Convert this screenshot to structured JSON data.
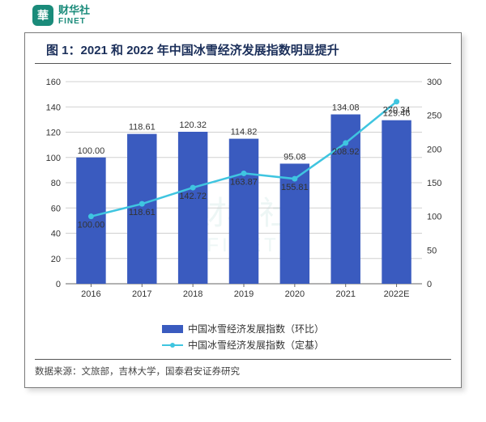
{
  "logo": {
    "icon_text": "華",
    "brand_cn": "财华社",
    "brand_en": "FINET",
    "brand_color": "#1a8b7a"
  },
  "chart": {
    "title": "图 1：2021 和 2022 年中国冰雪经济发展指数明显提升",
    "type": "bar+line-dual-axis",
    "categories": [
      "2016",
      "2017",
      "2018",
      "2019",
      "2020",
      "2021",
      "2022E"
    ],
    "bar_series": {
      "name": "中国冰雪经济发展指数（环比）",
      "values": [
        100.0,
        118.61,
        120.32,
        114.82,
        95.08,
        134.08,
        129.46
      ],
      "color": "#3a5bbf",
      "axis": "left"
    },
    "line_series": {
      "name": "中国冰雪经济发展指数（定基）",
      "values": [
        100.0,
        118.61,
        142.72,
        163.87,
        155.81,
        208.92,
        270.34
      ],
      "color": "#3fc5e0",
      "axis": "right"
    },
    "left_axis": {
      "min": 0,
      "max": 160,
      "step": 20
    },
    "right_axis": {
      "min": 0,
      "max": 300,
      "step": 50
    },
    "grid_color": "#d0d0d0",
    "axis_color": "#666666",
    "bg_color": "#ffffff",
    "bar_width_ratio": 0.58,
    "title_color": "#1b2f5a",
    "title_fontsize": 15,
    "tick_fontsize": 11,
    "value_label_fontsize": 11,
    "marker_radius": 3.5
  },
  "source": "数据来源：文旅部，吉林大学，国泰君安证券研究",
  "watermark": {
    "main": "财华社",
    "sub": "FINET"
  }
}
